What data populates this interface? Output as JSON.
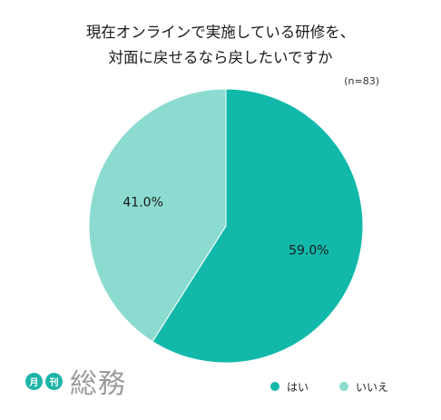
{
  "title_line1": "現在オンラインで実施している研修を、",
  "title_line2": "対面に戻せるなら戻したいですか",
  "sample_note": "(n=83)",
  "logo": {
    "badge1": "月",
    "badge2": "刊",
    "text": "総務"
  },
  "colors": {
    "hai": "#12b9ab",
    "iie": "#8bdbd0"
  },
  "chart_data": {
    "type": "pie",
    "categories": [
      "はい",
      "いいえ"
    ],
    "values": [
      59.0,
      41.0
    ],
    "labels": [
      "59.0%",
      "41.0%"
    ],
    "legend": [
      {
        "name": "はい",
        "color": "#12b9ab"
      },
      {
        "name": "いいえ",
        "color": "#8bdbd0"
      }
    ],
    "legend_position": "bottom-right"
  }
}
